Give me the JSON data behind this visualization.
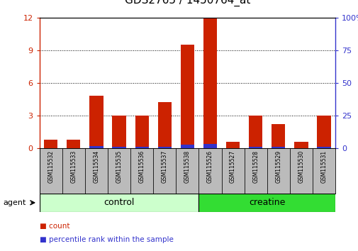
{
  "title": "GDS2765 / 1450764_at",
  "samples": [
    "GSM115532",
    "GSM115533",
    "GSM115534",
    "GSM115535",
    "GSM115536",
    "GSM115537",
    "GSM115538",
    "GSM115526",
    "GSM115527",
    "GSM115528",
    "GSM115529",
    "GSM115530",
    "GSM115531"
  ],
  "count_values": [
    0.8,
    0.75,
    4.8,
    3.0,
    3.0,
    4.2,
    9.5,
    12.0,
    0.6,
    3.0,
    2.2,
    0.6,
    3.0
  ],
  "percentile_values": [
    0.0,
    0.0,
    1.6,
    0.8,
    0.8,
    1.2,
    2.6,
    3.1,
    0.15,
    1.2,
    0.9,
    0.0,
    1.2
  ],
  "count_color": "#cc2200",
  "percentile_color": "#3333cc",
  "ylim_left": [
    0,
    12
  ],
  "ylim_right": [
    0,
    100
  ],
  "yticks_left": [
    0,
    3,
    6,
    9,
    12
  ],
  "yticks_right": [
    0,
    25,
    50,
    75,
    100
  ],
  "groups": [
    {
      "label": "control",
      "indices": [
        0,
        1,
        2,
        3,
        4,
        5,
        6
      ],
      "color": "#ccffcc"
    },
    {
      "label": "creatine",
      "indices": [
        7,
        8,
        9,
        10,
        11,
        12
      ],
      "color": "#33dd33"
    }
  ],
  "group_row_label": "agent",
  "legend_items": [
    {
      "label": "count",
      "color": "#cc2200"
    },
    {
      "label": "percentile rank within the sample",
      "color": "#3333cc"
    }
  ],
  "bar_width": 0.6,
  "background_color": "#ffffff",
  "tick_label_area_color": "#bbbbbb",
  "group_label_fontsize": 9,
  "title_fontsize": 11
}
